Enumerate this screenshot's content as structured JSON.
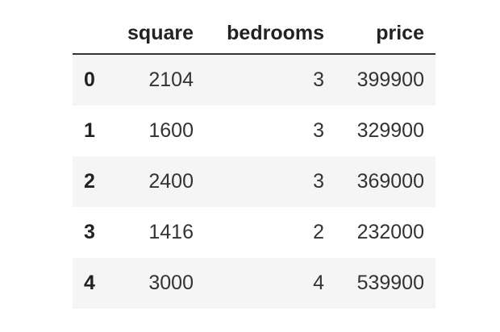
{
  "table": {
    "columns": [
      "square",
      "bedrooms",
      "price"
    ],
    "rows": [
      {
        "index": "0",
        "cells": [
          "2104",
          "3",
          "399900"
        ]
      },
      {
        "index": "1",
        "cells": [
          "1600",
          "3",
          "329900"
        ]
      },
      {
        "index": "2",
        "cells": [
          "2400",
          "3",
          "369000"
        ]
      },
      {
        "index": "3",
        "cells": [
          "1416",
          "2",
          "232000"
        ]
      },
      {
        "index": "4",
        "cells": [
          "3000",
          "4",
          "539900"
        ]
      }
    ]
  }
}
